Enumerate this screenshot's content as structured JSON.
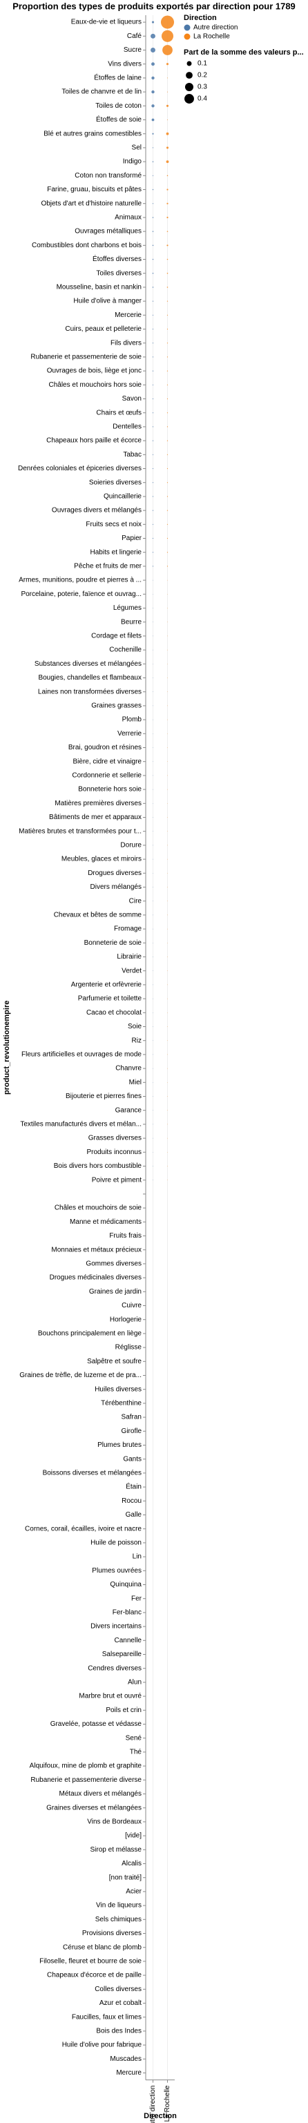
{
  "chart_data": {
    "type": "bubble_matrix",
    "title": "Proportion des types de produits exportés par direction pour 1789",
    "y_label": "product_revolutionempire",
    "x_label": "Direction",
    "legend_title": "Direction",
    "size_legend": {
      "title": "Part de la somme des valeurs p...",
      "values": [
        0.1,
        0.2,
        0.3,
        0.4
      ]
    },
    "categories": [
      "Eaux-de-vie et liqueurs",
      "Café",
      "Sucre",
      "Vins divers",
      "Étoffes de laine",
      "Toiles de chanvre et de lin",
      "Toiles de coton",
      "Étoffes de soie",
      "Blé et autres grains comestibles",
      "Sel",
      "Indigo",
      "Coton non transformé",
      "Farine, gruau, biscuits et pâtes",
      "Objets d'art et d'histoire naturelle",
      "Animaux",
      "Ouvrages métalliques",
      "Combustibles dont charbons et bois",
      "Étoffes diverses",
      "Toiles diverses",
      "Mousseline, basin et nankin",
      "Huile d'olive à manger",
      "Mercerie",
      "Cuirs, peaux et pelleterie",
      "Fils divers",
      "Rubanerie et passementerie de soie",
      "Ouvrages de bois, liège et jonc",
      "Châles et mouchoirs hors soie",
      "Savon",
      "Chairs et œufs",
      "Dentelles",
      "Chapeaux hors paille et écorce",
      "Tabac",
      "Denrées coloniales et épiceries diverses",
      "Soieries diverses",
      "Quincaillerie",
      "Ouvrages divers et mélangés",
      "Fruits secs et noix",
      "Papier",
      "Habits et lingerie",
      "Pêche et fruits de mer",
      "Armes, munitions, poudre et pierres à ...",
      "Porcelaine, poterie, faïence et ouvrag...",
      "Légumes",
      "Beurre",
      "Cordage et filets",
      "Cochenille",
      "Substances diverses et mélangées",
      "Bougies, chandelles et flambeaux",
      "Laines non transformées diverses",
      "Graines grasses",
      "Plomb",
      "Verrerie",
      "Brai, goudron et résines",
      "Bière, cidre et vinaigre",
      "Cordonnerie et sellerie",
      "Bonneterie hors soie",
      "Matières premières diverses",
      "Bâtiments de mer et apparaux",
      "Matières brutes et transformées pour t...",
      "Dorure",
      "Meubles, glaces et miroirs",
      "Drogues diverses",
      "Divers mélangés",
      "Cire",
      "Chevaux et bêtes de somme",
      "Fromage",
      "Bonneterie de soie",
      "Librairie",
      "Verdet",
      "Argenterie et orfèvrerie",
      "Parfumerie et toilette",
      "Cacao et chocolat",
      "Soie",
      "Riz",
      "Fleurs artificielles et ouvrages de mode",
      "Chanvre",
      "Miel",
      "Bijouterie et pierres fines",
      "Garance",
      "Textiles manufacturés divers et mélan...",
      "Grasses diverses",
      "Produits inconnus",
      "Bois divers hors combustible",
      "Poivre et piment",
      null,
      "Châles et mouchoirs de soie",
      "Manne et médicaments",
      "Fruits frais",
      "Monnaies et métaux précieux",
      "Gommes diverses",
      "Drogues médicinales diverses",
      "Graines de jardin",
      "Cuivre",
      "Horlogerie",
      "Bouchons principalement en liège",
      "Réglisse",
      "Salpêtre et soufre",
      "Graines de trèfle, de luzerne et de pra...",
      "Huiles diverses",
      "Térébenthine",
      "Safran",
      "Girofle",
      "Plumes brutes",
      "Gants",
      "Boissons diverses et mélangées",
      "Étain",
      "Rocou",
      "Galle",
      "Cornes, corail, écailles, ivoire et nacre",
      "Huile de poisson",
      "Lin",
      "Plumes ouvrées",
      "Quinquina",
      "Fer",
      "Fer-blanc",
      "Divers incertains",
      "Cannelle",
      "Salsepareille",
      "Cendres diverses",
      "Alun",
      "Marbre brut et ouvré",
      "Poils et crin",
      "Gravelée, potasse et védasse",
      "Sené",
      "Thé",
      "Alquifoux, mine de plomb et graphite",
      "Rubanerie et passementerie diverse",
      "Métaux divers et mélangés",
      "Graines diverses et mélangées",
      "Vins de Bordeaux",
      "[vide]",
      "Sirop et mélasse",
      "Alcalis",
      "[non traité]",
      "Acier",
      "Vin de liqueurs",
      "Sels chimiques",
      "Provisions diverses",
      "Céruse et blanc de plomb",
      "Filoselle, fleuret et bourre de soie",
      "Chapeaux d'écorce et de paille",
      "Colles diverses",
      "Azur et cobalt",
      "Faucilles, faux et limes",
      "Bois des Indes",
      "Huile d'olive pour fabrique",
      "Muscades",
      "Mercure"
    ],
    "series": [
      {
        "name": "Autre direction",
        "color": "#4c78a8",
        "values": [
          0.02,
          0.1,
          0.1,
          0.05,
          0.04,
          0.04,
          0.04,
          0.03,
          0.01,
          0.003,
          0.005,
          0.003,
          0.005,
          0.003,
          0.005,
          0.005,
          0.005,
          0.005,
          0.005,
          0.005,
          0.003,
          0.003,
          0.003,
          0.003,
          0.003,
          0.003,
          0.003,
          0.003,
          0.003,
          0.003,
          0.003,
          0.003,
          0.003,
          0.003,
          0.003,
          0.003,
          0.003,
          0.003,
          0.003,
          0.003,
          0.001,
          0.001,
          0.001,
          0.001,
          0.001,
          0.001,
          0.001,
          0.001,
          0.001,
          0.001,
          0.001,
          0.001,
          0.001,
          0.001,
          0.001,
          0.001,
          0.001,
          0.001,
          0.001,
          0.001,
          0.001,
          0.001,
          0.001,
          0.001,
          0.001,
          0.001,
          0.001,
          0.001,
          0.001,
          0.001,
          0.001,
          0.001,
          0.001,
          0.001,
          0.001,
          0.001,
          0.001,
          0.001,
          0.001,
          0.001,
          0.001,
          0.001,
          0.001,
          0.001,
          null,
          0,
          0,
          0,
          0,
          0,
          0,
          0,
          0,
          0,
          0,
          0,
          0,
          0,
          0,
          0,
          0,
          0,
          0,
          0,
          0,
          0,
          0,
          0,
          0,
          0,
          0,
          0,
          0,
          0,
          0,
          0,
          0,
          0,
          0,
          0,
          0,
          0,
          0,
          0,
          0,
          0,
          0,
          0,
          0,
          0,
          0,
          0,
          0,
          0,
          0,
          0,
          0,
          0,
          0,
          0,
          0,
          0,
          0,
          0,
          0,
          0,
          0,
          0
        ]
      },
      {
        "name": "La Rochelle",
        "color": "#f58518",
        "values": [
          0.75,
          0.6,
          0.45,
          0.02,
          0.002,
          0.002,
          0.02,
          0.002,
          0.03,
          0.02,
          0.03,
          0.005,
          0.01,
          0.01,
          0.01,
          0.005,
          0.01,
          0.005,
          0.005,
          0.005,
          0.003,
          0.003,
          0.003,
          0.003,
          0.003,
          0.003,
          0.003,
          0.003,
          0.003,
          0.003,
          0.003,
          0.003,
          0.003,
          0.003,
          0.003,
          0.003,
          0.003,
          0.003,
          0.003,
          0.003,
          0.001,
          0.001,
          0.001,
          0.001,
          0.001,
          0.001,
          0.001,
          0.001,
          0.001,
          0.001,
          0.001,
          0.001,
          0.001,
          0.001,
          0.001,
          0.001,
          0.001,
          0.001,
          0.001,
          0.001,
          0.001,
          0.001,
          0.001,
          0.001,
          0.001,
          0.001,
          0.001,
          0.001,
          0.001,
          0.001,
          0.001,
          0.001,
          0.001,
          0.001,
          0.001,
          0.001,
          0.001,
          0.001,
          0.001,
          0.001,
          0.001,
          0.001,
          0.001,
          0.001,
          null,
          0,
          0,
          0,
          0,
          0,
          0,
          0,
          0,
          0,
          0,
          0,
          0,
          0,
          0,
          0,
          0,
          0,
          0,
          0,
          0,
          0,
          0,
          0,
          0,
          0,
          0,
          0,
          0,
          0,
          0,
          0,
          0,
          0,
          0,
          0,
          0,
          0,
          0,
          0,
          0,
          0,
          0,
          0,
          0,
          0,
          0,
          0,
          0,
          0,
          0,
          0,
          0,
          0,
          0,
          0,
          0,
          0,
          0,
          0,
          0,
          0,
          0,
          0
        ]
      }
    ]
  }
}
